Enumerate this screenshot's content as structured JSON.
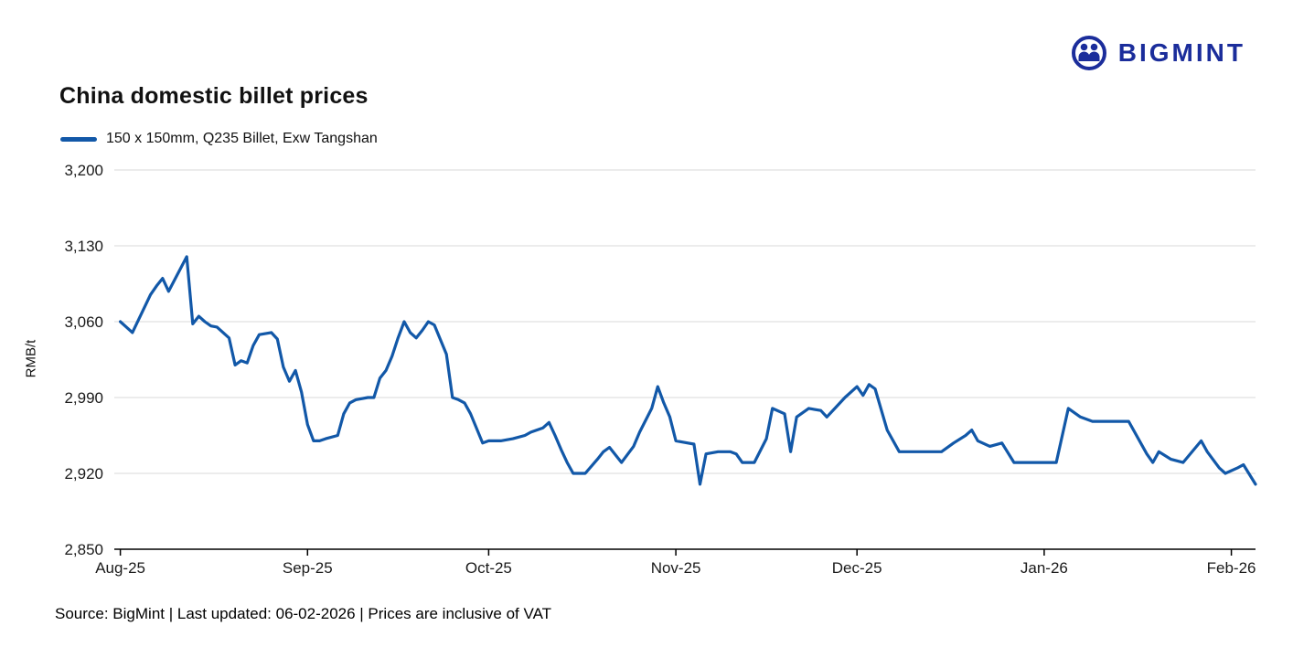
{
  "header": {
    "title": "China domestic billet prices",
    "brand": "BIGMINT"
  },
  "legend": {
    "label": "150 x 150mm, Q235 Billet, Exw Tangshan"
  },
  "footer": {
    "source_line": "Source: BigMint | Last updated: 06-02-2026 | Prices are inclusive of VAT"
  },
  "colors": {
    "line": "#1258a8",
    "logo": "#1b2d9b",
    "grid": "#d8d8d8",
    "axis": "#000000",
    "text": "#1a1a1a"
  },
  "chart_data": {
    "type": "line",
    "title": "China domestic billet prices",
    "ylabel": "RMB/t",
    "ylim": [
      2850,
      3200
    ],
    "yticks": [
      2850,
      2920,
      2990,
      3060,
      3130,
      3200
    ],
    "xlim_days": [
      -1,
      188
    ],
    "xticks_days": [
      0,
      31,
      61,
      92,
      122,
      153,
      184
    ],
    "xtick_labels": [
      "Aug-25",
      "Sep-25",
      "Oct-25",
      "Nov-25",
      "Dec-25",
      "Jan-26",
      "Feb-26"
    ],
    "grid": "horizontal",
    "legend_position": "top-left",
    "series": [
      {
        "name": "150 x 150mm, Q235 Billet, Exw Tangshan",
        "x_days": [
          0,
          1,
          2,
          5,
          6,
          7,
          8,
          11,
          12,
          13,
          14,
          15,
          16,
          18,
          19,
          20,
          21,
          22,
          23,
          25,
          26,
          27,
          28,
          29,
          30,
          31,
          32,
          33,
          34,
          36,
          37,
          38,
          39,
          41,
          42,
          43,
          44,
          45,
          46,
          47,
          48,
          49,
          50,
          51,
          52,
          54,
          55,
          56,
          57,
          58,
          60,
          61,
          63,
          65,
          67,
          68,
          70,
          71,
          72,
          73,
          74,
          75,
          77,
          79,
          80,
          81,
          83,
          85,
          86,
          88,
          89,
          90,
          91,
          92,
          94,
          95,
          96,
          97,
          99,
          101,
          102,
          103,
          105,
          107,
          108,
          110,
          111,
          112,
          114,
          116,
          117,
          119,
          120,
          122,
          123,
          124,
          125,
          127,
          129,
          131,
          133,
          136,
          138,
          140,
          141,
          142,
          144,
          146,
          148,
          150,
          153,
          155,
          157,
          159,
          161,
          164,
          167,
          170,
          171,
          172,
          174,
          176,
          179,
          180,
          182,
          183,
          185,
          186,
          188
        ],
        "values": [
          3060,
          3055,
          3050,
          3085,
          3093,
          3100,
          3088,
          3120,
          3058,
          3065,
          3060,
          3056,
          3055,
          3045,
          3020,
          3024,
          3022,
          3038,
          3048,
          3050,
          3044,
          3018,
          3005,
          3015,
          2995,
          2965,
          2950,
          2950,
          2952,
          2955,
          2975,
          2985,
          2988,
          2990,
          2990,
          3008,
          3015,
          3028,
          3045,
          3060,
          3050,
          3045,
          3052,
          3060,
          3057,
          3030,
          2990,
          2988,
          2985,
          2975,
          2948,
          2950,
          2950,
          2952,
          2955,
          2958,
          2962,
          2967,
          2955,
          2942,
          2930,
          2920,
          2920,
          2933,
          2940,
          2944,
          2930,
          2945,
          2958,
          2980,
          3000,
          2985,
          2972,
          2950,
          2948,
          2947,
          2910,
          2938,
          2940,
          2940,
          2938,
          2930,
          2930,
          2952,
          2980,
          2975,
          2940,
          2972,
          2980,
          2978,
          2972,
          2984,
          2990,
          3000,
          2992,
          3002,
          2998,
          2960,
          2940,
          2940,
          2940,
          2940,
          2948,
          2955,
          2960,
          2950,
          2945,
          2948,
          2930,
          2930,
          2930,
          2930,
          2980,
          2972,
          2968,
          2968,
          2968,
          2938,
          2930,
          2940,
          2933,
          2930,
          2950,
          2940,
          2925,
          2920,
          2925,
          2928,
          2910
        ]
      }
    ]
  }
}
